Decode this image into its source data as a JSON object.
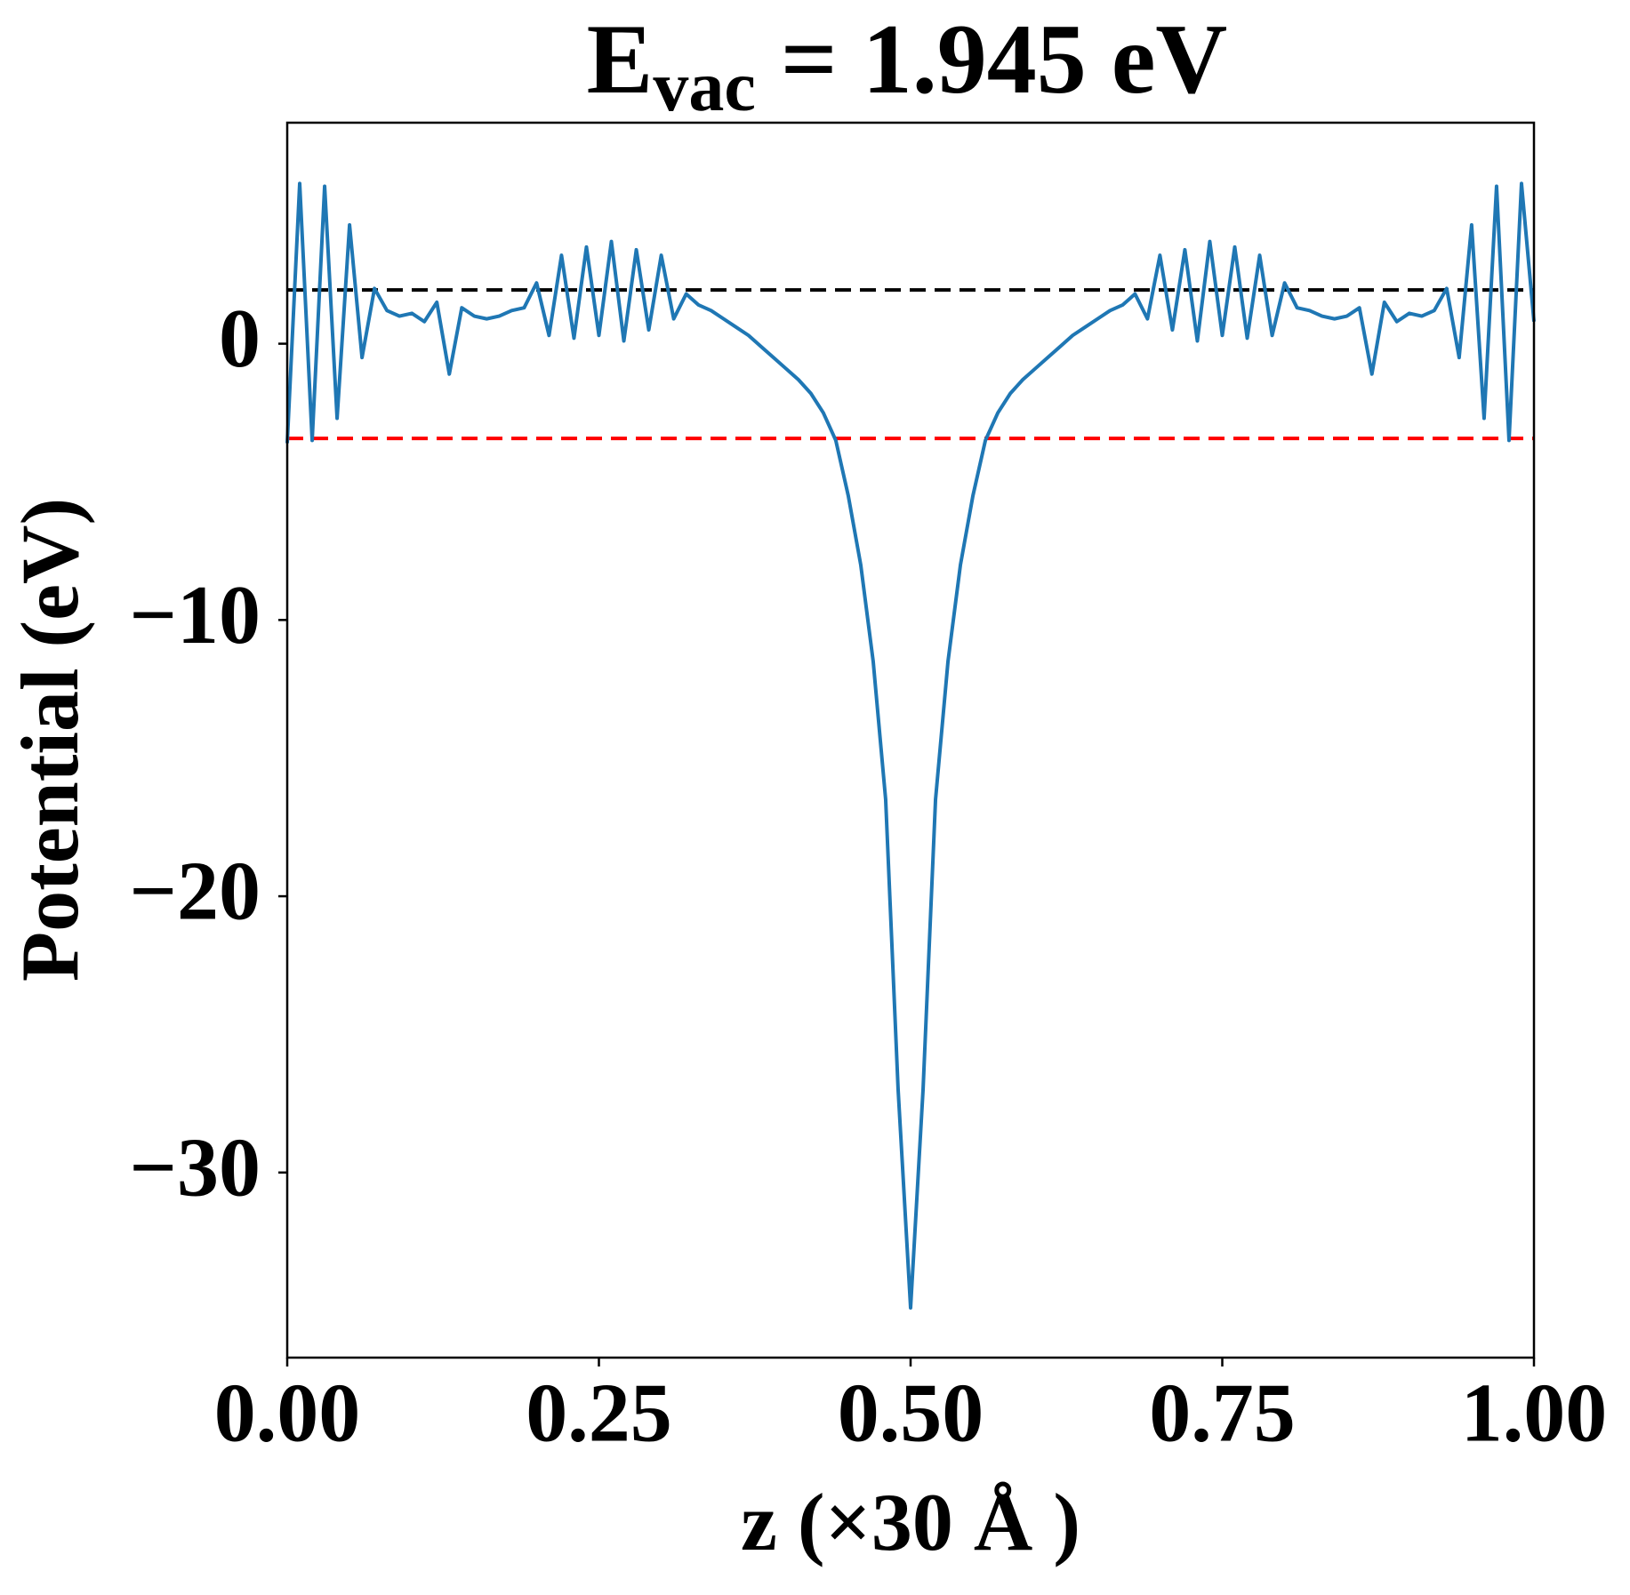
{
  "chart_data": {
    "type": "line",
    "title": [
      "E",
      "vac",
      " = 1.945 eV"
    ],
    "x_label": "z (×30 Å )",
    "y_label": "Potential (eV)",
    "color": "#1f77b4",
    "x": [
      0.0,
      0.01,
      0.02,
      0.03,
      0.04,
      0.05,
      0.06,
      0.07,
      0.08,
      0.09,
      0.1,
      0.11,
      0.12,
      0.13,
      0.14,
      0.15,
      0.16,
      0.17,
      0.18,
      0.19,
      0.2,
      0.21,
      0.22,
      0.23,
      0.24,
      0.25,
      0.26,
      0.27,
      0.28,
      0.29,
      0.3,
      0.31,
      0.32,
      0.33,
      0.34,
      0.35,
      0.36,
      0.37,
      0.38,
      0.39,
      0.4,
      0.41,
      0.42,
      0.43,
      0.44,
      0.45,
      0.46,
      0.47,
      0.48,
      0.49,
      0.5,
      0.51,
      0.52,
      0.53,
      0.54,
      0.55,
      0.56,
      0.57,
      0.58,
      0.59,
      0.6,
      0.61,
      0.62,
      0.63,
      0.64,
      0.65,
      0.66,
      0.67,
      0.68,
      0.69,
      0.7,
      0.71,
      0.72,
      0.73,
      0.74,
      0.75,
      0.76,
      0.77,
      0.78,
      0.79,
      0.8,
      0.81,
      0.82,
      0.83,
      0.84,
      0.85,
      0.86,
      0.87,
      0.88,
      0.89,
      0.9,
      0.91,
      0.92,
      0.93,
      0.94,
      0.95,
      0.96,
      0.97,
      0.98,
      0.99,
      1.0
    ],
    "values": [
      -3.6,
      5.8,
      -3.5,
      5.7,
      -2.7,
      4.3,
      -0.5,
      2.0,
      1.2,
      1.0,
      1.1,
      0.8,
      1.5,
      -1.1,
      1.3,
      1.0,
      0.9,
      1.0,
      1.2,
      1.3,
      2.2,
      0.3,
      3.2,
      0.2,
      3.5,
      0.3,
      3.7,
      0.1,
      3.4,
      0.5,
      3.2,
      0.9,
      1.8,
      1.4,
      1.2,
      0.9,
      0.6,
      0.3,
      -0.1,
      -0.5,
      -0.9,
      -1.3,
      -1.8,
      -2.5,
      -3.5,
      -5.5,
      -8.0,
      -11.5,
      -16.5,
      -27.0,
      -34.9,
      -27.0,
      -16.5,
      -11.5,
      -8.0,
      -5.5,
      -3.5,
      -2.5,
      -1.8,
      -1.3,
      -0.9,
      -0.5,
      -0.1,
      0.3,
      0.6,
      0.9,
      1.2,
      1.4,
      1.8,
      0.9,
      3.2,
      0.5,
      3.4,
      0.1,
      3.7,
      0.3,
      3.5,
      0.2,
      3.2,
      0.3,
      2.2,
      1.3,
      1.2,
      1.0,
      0.9,
      1.0,
      1.3,
      -1.1,
      1.5,
      0.8,
      1.1,
      1.0,
      1.2,
      2.0,
      -0.5,
      4.3,
      -2.7,
      5.7,
      -3.5,
      5.8,
      0.8
    ],
    "hlines": [
      {
        "value": 1.945,
        "color": "#000000"
      },
      {
        "value": -3.43,
        "color": "#ff0000"
      }
    ],
    "xlim": [
      0,
      1
    ],
    "ylim": [
      -36.7,
      8
    ],
    "xticks": [
      {
        "value": 0,
        "label": "0.00"
      },
      {
        "value": 0.25,
        "label": "0.25"
      },
      {
        "value": 0.5,
        "label": "0.50"
      },
      {
        "value": 0.75,
        "label": "0.75"
      },
      {
        "value": 1,
        "label": "1.00"
      }
    ],
    "yticks": [
      {
        "value": -30,
        "label": "−30"
      },
      {
        "value": -20,
        "label": "−20"
      },
      {
        "value": -10,
        "label": "−10"
      },
      0
    ],
    "grid": false
  }
}
